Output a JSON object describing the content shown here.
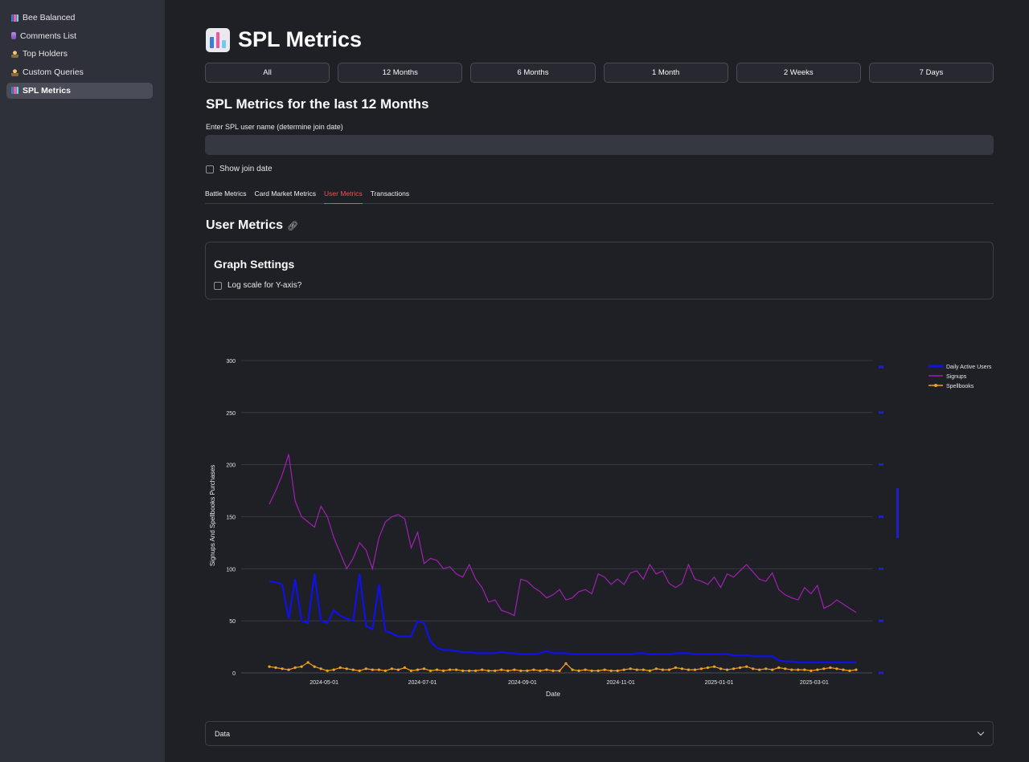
{
  "sidebar": {
    "items": [
      {
        "label": "Bee Balanced",
        "icon": "bar-chart-icon"
      },
      {
        "label": "Comments List",
        "icon": "vial-icon"
      },
      {
        "label": "Top Holders",
        "icon": "person-icon"
      },
      {
        "label": "Custom Queries",
        "icon": "person-icon"
      },
      {
        "label": "SPL Metrics",
        "icon": "bar-chart-icon",
        "active": true
      }
    ]
  },
  "header": {
    "title": "SPL Metrics"
  },
  "range_buttons": [
    "All",
    "12 Months",
    "6 Months",
    "1 Month",
    "2 Weeks",
    "7 Days"
  ],
  "section_title": "SPL Metrics for the last 12 Months",
  "username_input": {
    "label": "Enter SPL user name (determine join date)",
    "value": "",
    "placeholder": ""
  },
  "show_join_date": {
    "label": "Show join date",
    "checked": false
  },
  "tabs": [
    {
      "label": "Battle Metrics",
      "active": false
    },
    {
      "label": "Card Market Metrics",
      "active": false
    },
    {
      "label": "User Metrics",
      "active": true
    },
    {
      "label": "Transactions",
      "active": false
    }
  ],
  "user_metrics": {
    "title": "User Metrics"
  },
  "graph_settings": {
    "title": "Graph Settings",
    "log_scale_label": "Log scale for Y-axis?",
    "log_scale_checked": false
  },
  "data_expander": {
    "label": "Data"
  },
  "colors": {
    "dau": "#1010e8",
    "signups": "#a020b0",
    "spellbooks": "#f0a020",
    "accent": "#ff4b4b"
  },
  "chart_data": {
    "type": "line",
    "xlabel": "Date",
    "ylabel": "Signups And Spellbooks  Purchases",
    "ylim": [
      0,
      300
    ],
    "y_ticks": [
      0,
      50,
      100,
      150,
      200,
      250,
      300
    ],
    "x_range": [
      "2024-03-28",
      "2025-03-29"
    ],
    "x_ticks": [
      "2024-05-01",
      "2024-07-01",
      "2024-09-01",
      "2024-11-01",
      "2025-01-01",
      "2025-03-01"
    ],
    "grid": true,
    "legend_placement": "top-right",
    "series": [
      {
        "name": "Daily Active Users",
        "axis": "right",
        "x_start": "2024-03-28",
        "step_days": 4,
        "values": [
          88,
          87,
          85,
          52,
          90,
          50,
          48,
          95,
          50,
          48,
          60,
          55,
          52,
          50,
          95,
          45,
          42,
          85,
          40,
          38,
          35,
          35,
          35,
          50,
          48,
          30,
          24,
          22,
          22,
          21,
          20,
          20,
          19,
          19,
          19,
          19,
          20,
          19,
          19,
          18,
          18,
          18,
          19,
          21,
          19,
          19,
          19,
          18,
          18,
          18,
          18,
          18,
          18,
          18,
          18,
          18,
          18,
          19,
          19,
          18,
          18,
          18,
          18,
          19,
          19,
          19,
          18,
          18,
          18,
          18,
          18,
          18,
          17,
          17,
          17,
          16,
          16,
          16,
          16,
          12,
          11,
          11,
          10,
          10,
          10,
          10,
          10,
          10,
          10,
          10,
          10,
          10
        ]
      },
      {
        "name": "Signups",
        "axis": "left",
        "x_start": "2024-03-28",
        "step_days": 4,
        "values": [
          162,
          175,
          190,
          210,
          165,
          150,
          145,
          140,
          160,
          150,
          130,
          115,
          100,
          110,
          125,
          118,
          100,
          130,
          145,
          150,
          152,
          148,
          120,
          135,
          105,
          110,
          108,
          100,
          102,
          95,
          92,
          104,
          90,
          82,
          68,
          70,
          60,
          58,
          55,
          90,
          88,
          82,
          78,
          72,
          75,
          80,
          70,
          72,
          78,
          80,
          76,
          95,
          92,
          85,
          90,
          85,
          96,
          98,
          90,
          104,
          95,
          98,
          86,
          82,
          86,
          104,
          90,
          88,
          85,
          92,
          82,
          95,
          92,
          98,
          104,
          97,
          90,
          88,
          96,
          80,
          75,
          72,
          70,
          82,
          76,
          84,
          62,
          65,
          70,
          66,
          62,
          58
        ]
      },
      {
        "name": "Spellbooks",
        "axis": "left",
        "x_start": "2024-03-28",
        "step_days": 4,
        "values": [
          6,
          5,
          4,
          3,
          5,
          6,
          10,
          6,
          4,
          2,
          3,
          5,
          4,
          3,
          2,
          4,
          3,
          3,
          2,
          4,
          3,
          5,
          2,
          3,
          4,
          2,
          3,
          2,
          3,
          3,
          2,
          2,
          2,
          3,
          2,
          2,
          3,
          2,
          3,
          2,
          2,
          3,
          2,
          3,
          2,
          2,
          9,
          3,
          2,
          3,
          2,
          2,
          3,
          2,
          2,
          3,
          4,
          3,
          3,
          2,
          4,
          3,
          3,
          5,
          4,
          3,
          3,
          4,
          5,
          6,
          4,
          3,
          4,
          5,
          6,
          4,
          3,
          4,
          3,
          5,
          4,
          3,
          3,
          3,
          2,
          3,
          4,
          5,
          4,
          3,
          2,
          3
        ]
      }
    ]
  }
}
